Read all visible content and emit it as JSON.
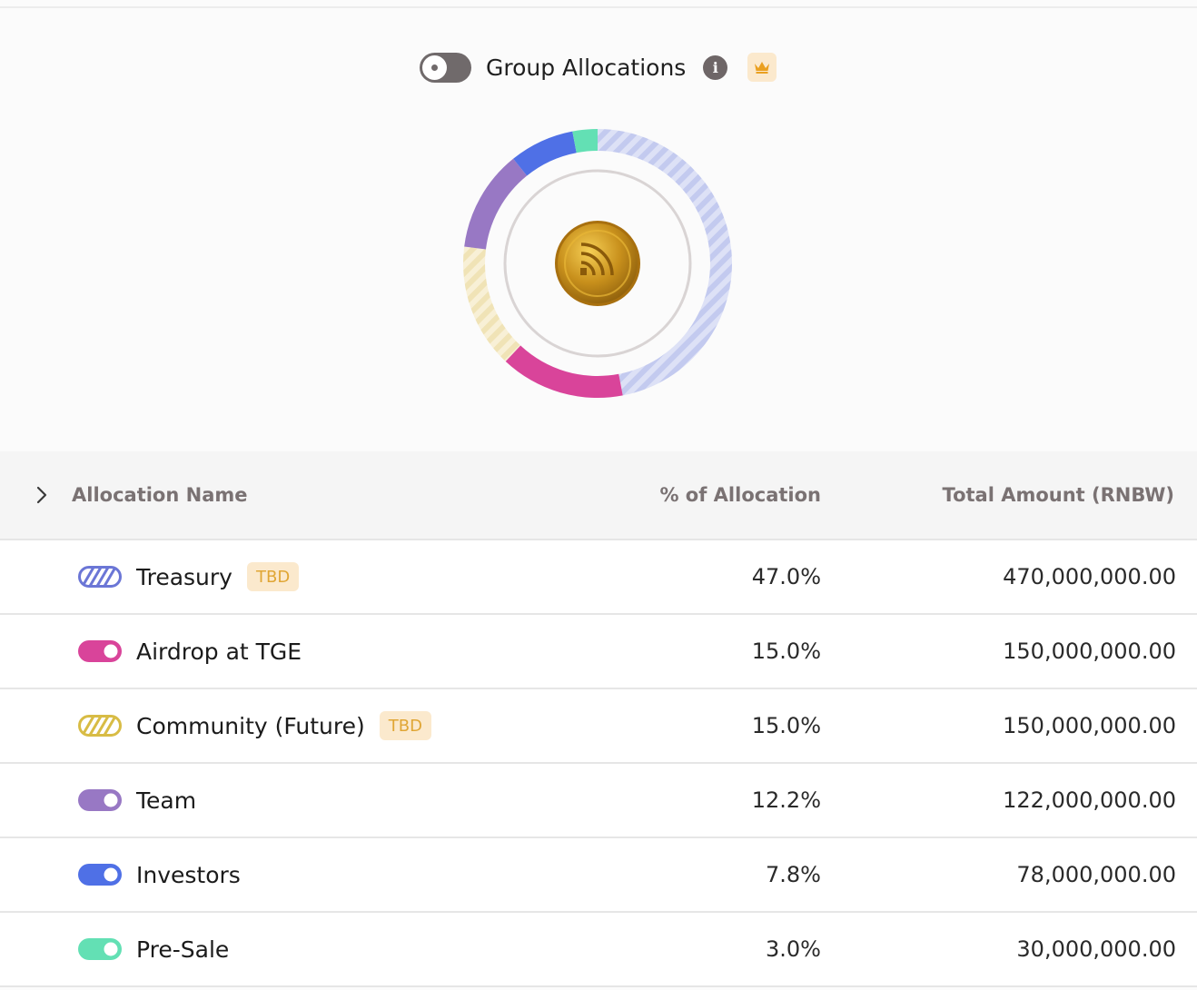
{
  "group": {
    "toggle_on": false,
    "label": "Group Allocations",
    "info_icon": "info-icon",
    "crown_icon": "crown-icon"
  },
  "chart_data": {
    "type": "pie",
    "style": "donut",
    "center_icon": "gold-coin-logo",
    "slices": [
      {
        "name": "Treasury",
        "value": 47.0,
        "color": "#c5ccef",
        "pattern": "striped"
      },
      {
        "name": "Airdrop at TGE",
        "value": 15.0,
        "color": "#d9449a",
        "pattern": "solid"
      },
      {
        "name": "Community (Future)",
        "value": 15.0,
        "color": "#f3e8c3",
        "pattern": "striped"
      },
      {
        "name": "Team",
        "value": 12.2,
        "color": "#9878c4",
        "pattern": "solid"
      },
      {
        "name": "Investors",
        "value": 7.8,
        "color": "#4f70e6",
        "pattern": "solid"
      },
      {
        "name": "Pre-Sale",
        "value": 3.0,
        "color": "#63e0b4",
        "pattern": "solid"
      }
    ]
  },
  "table": {
    "columns": {
      "name": "Allocation Name",
      "pct": "% of Allocation",
      "amount": "Total Amount (RNBW)"
    },
    "rows": [
      {
        "name": "Treasury",
        "tbd": "TBD",
        "pct": "47.0%",
        "amount": "470,000,000.00",
        "color": "#6b76d6",
        "pattern": "striped"
      },
      {
        "name": "Airdrop at TGE",
        "tbd": "",
        "pct": "15.0%",
        "amount": "150,000,000.00",
        "color": "#d9449a",
        "pattern": "solid"
      },
      {
        "name": "Community (Future)",
        "tbd": "TBD",
        "pct": "15.0%",
        "amount": "150,000,000.00",
        "color": "#d8bc45",
        "pattern": "striped"
      },
      {
        "name": "Team",
        "tbd": "",
        "pct": "12.2%",
        "amount": "122,000,000.00",
        "color": "#9878c4",
        "pattern": "solid"
      },
      {
        "name": "Investors",
        "tbd": "",
        "pct": "7.8%",
        "amount": "78,000,000.00",
        "color": "#4f70e6",
        "pattern": "solid"
      },
      {
        "name": "Pre-Sale",
        "tbd": "",
        "pct": "3.0%",
        "amount": "30,000,000.00",
        "color": "#63e0b4",
        "pattern": "solid"
      }
    ]
  }
}
